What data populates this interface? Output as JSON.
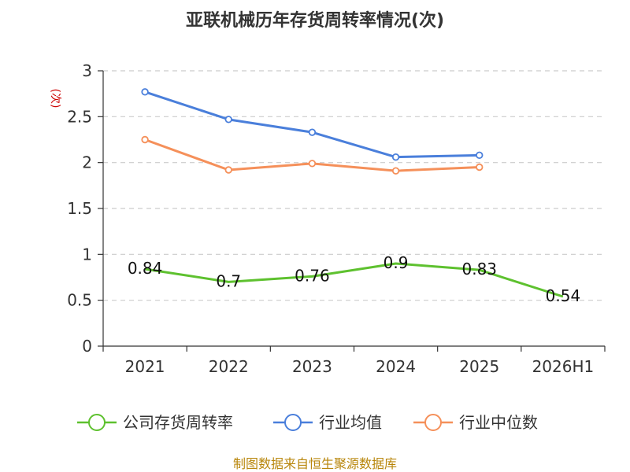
{
  "chart_data": {
    "type": "line",
    "title": "亚联机械历年存货周转率情况(次)",
    "ylabel": "(次)",
    "categories": [
      "2021",
      "2022",
      "2023",
      "2024",
      "2025",
      "2026H1"
    ],
    "ylim": [
      0,
      3
    ],
    "yticks": [
      "0",
      "0.5",
      "1",
      "1.5",
      "2",
      "2.5",
      "3"
    ],
    "grid": true,
    "legend_position": "bottom",
    "series": [
      {
        "name": "公司存货周转率",
        "color": "#5ec12f",
        "values": [
          0.84,
          0.7,
          0.76,
          0.9,
          0.83,
          0.54
        ],
        "labels": [
          "0.84",
          "0.7",
          "0.76",
          "0.9",
          "0.83",
          "0.54"
        ],
        "show_labels": true,
        "markers": false
      },
      {
        "name": "行业均值",
        "color": "#4a7fdb",
        "values": [
          2.77,
          2.47,
          2.33,
          2.06,
          2.08,
          null
        ],
        "show_labels": false,
        "markers": true
      },
      {
        "name": "行业中位数",
        "color": "#f5905a",
        "values": [
          2.25,
          1.92,
          1.99,
          1.91,
          1.95,
          null
        ],
        "show_labels": false,
        "markers": true
      }
    ],
    "source": "制图数据来自恒生聚源数据库"
  }
}
